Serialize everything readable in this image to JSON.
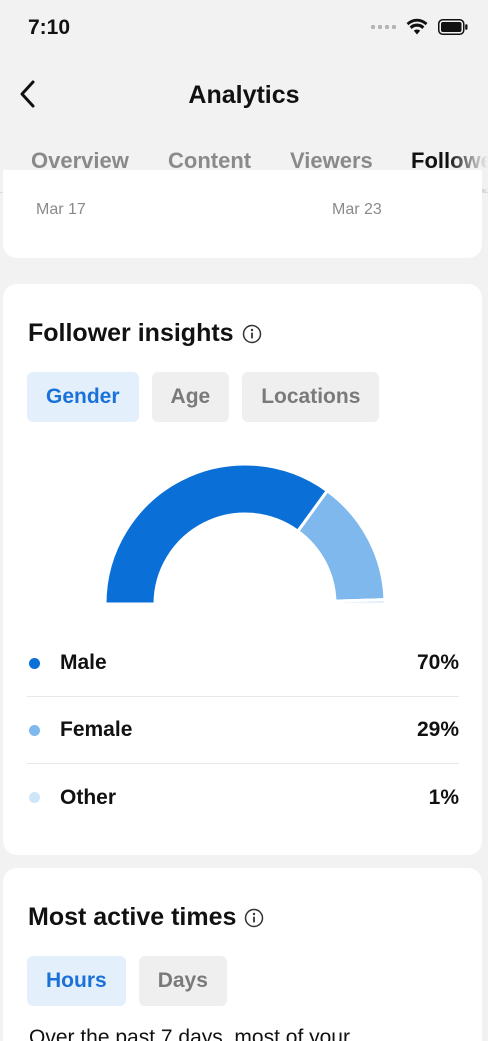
{
  "status_bar": {
    "time": "7:10",
    "icons": [
      "signal-icon",
      "wifi-icon",
      "battery-icon"
    ]
  },
  "nav": {
    "title": "Analytics",
    "back_icon": "chevron-left-icon"
  },
  "tabs": [
    {
      "label": "Overview",
      "active": false
    },
    {
      "label": "Content",
      "active": false
    },
    {
      "label": "Viewers",
      "active": false
    },
    {
      "label": "Followers",
      "active": true
    }
  ],
  "chart_top": {
    "dates": [
      "Mar 17",
      "Mar 23"
    ]
  },
  "insights": {
    "title": "Follower insights",
    "filters": [
      {
        "label": "Gender",
        "active": true
      },
      {
        "label": "Age",
        "active": false
      },
      {
        "label": "Locations",
        "active": false
      }
    ],
    "legend": [
      {
        "label": "Male",
        "value": "70%",
        "color": "#0b6fd8"
      },
      {
        "label": "Female",
        "value": "29%",
        "color": "#7fb8ec"
      },
      {
        "label": "Other",
        "value": "1%",
        "color": "#cfe5f8"
      }
    ]
  },
  "chart_data": {
    "type": "pie",
    "categories": [
      "Male",
      "Female",
      "Other"
    ],
    "values": [
      70,
      29,
      1
    ],
    "colors": [
      "#0b6fd8",
      "#7fb8ec",
      "#cfe5f8"
    ]
  },
  "active_times": {
    "title": "Most active times",
    "filters": [
      {
        "label": "Hours",
        "active": true
      },
      {
        "label": "Days",
        "active": false
      }
    ],
    "description": "Over the past 7 days, most of your"
  }
}
